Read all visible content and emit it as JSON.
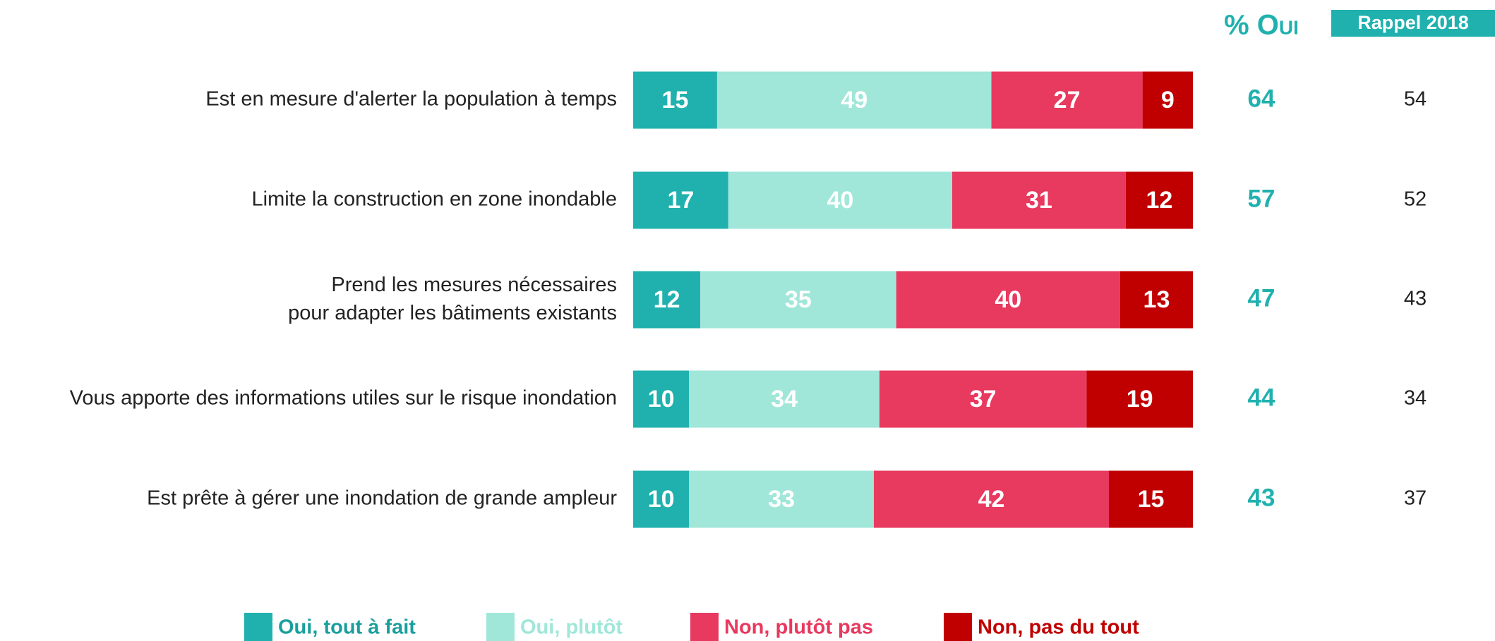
{
  "chart_data": {
    "type": "stacked_barh",
    "categories": [
      "Est en mesure d'alerter la population à temps",
      "Limite la construction en zone inondable",
      "Prend les mesures nécessaires\npour adapter les bâtiments existants",
      "Vous apporte des informations utiles sur le risque inondation",
      "Est prête à gérer une inondation de grande ampleur"
    ],
    "series": [
      {
        "name": "Oui, tout à fait",
        "color": "#20b1ae",
        "values": [
          15,
          17,
          12,
          10,
          10
        ]
      },
      {
        "name": "Oui, plutôt",
        "color": "#a0e7d9",
        "values": [
          49,
          40,
          35,
          34,
          33
        ]
      },
      {
        "name": "Non, plutôt pas",
        "color": "#e8395f",
        "values": [
          27,
          31,
          40,
          37,
          42
        ]
      },
      {
        "name": "Non, pas du tout",
        "color": "#c00000",
        "values": [
          9,
          12,
          13,
          19,
          15
        ]
      }
    ],
    "xlim": [
      0,
      100
    ],
    "oui_header": "% Oui",
    "oui_values": [
      64,
      57,
      47,
      44,
      43
    ],
    "oui_color": "#20b1ae",
    "rappel_header": "Rappel 2018",
    "rappel_values": [
      54,
      52,
      43,
      34,
      37
    ],
    "legend": "bottom"
  }
}
